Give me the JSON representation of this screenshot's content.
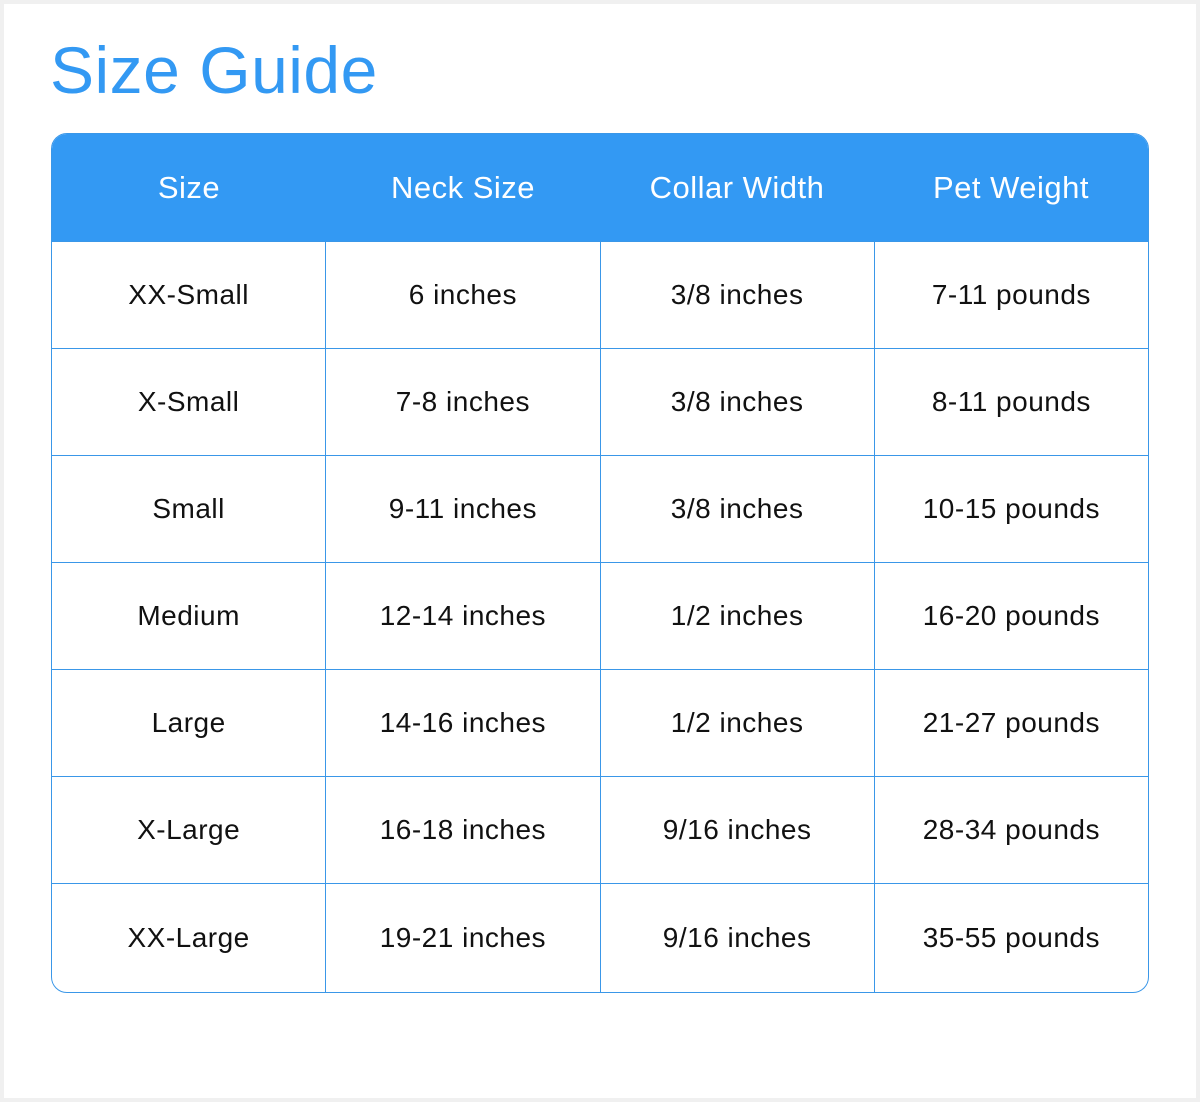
{
  "title": "Size Guide",
  "colors": {
    "accent": "#3399f3"
  },
  "table": {
    "headers": [
      "Size",
      "Neck Size",
      "Collar Width",
      "Pet Weight"
    ],
    "rows": [
      [
        "XX-Small",
        "6 inches",
        "3/8 inches",
        "7-11 pounds"
      ],
      [
        "X-Small",
        "7-8 inches",
        "3/8 inches",
        "8-11 pounds"
      ],
      [
        "Small",
        "9-11 inches",
        "3/8 inches",
        "10-15 pounds"
      ],
      [
        "Medium",
        "12-14 inches",
        "1/2 inches",
        "16-20 pounds"
      ],
      [
        "Large",
        "14-16 inches",
        "1/2 inches",
        "21-27 pounds"
      ],
      [
        "X-Large",
        "16-18 inches",
        "9/16 inches",
        "28-34 pounds"
      ],
      [
        "XX-Large",
        "19-21 inches",
        "9/16 inches",
        "35-55 pounds"
      ]
    ]
  }
}
